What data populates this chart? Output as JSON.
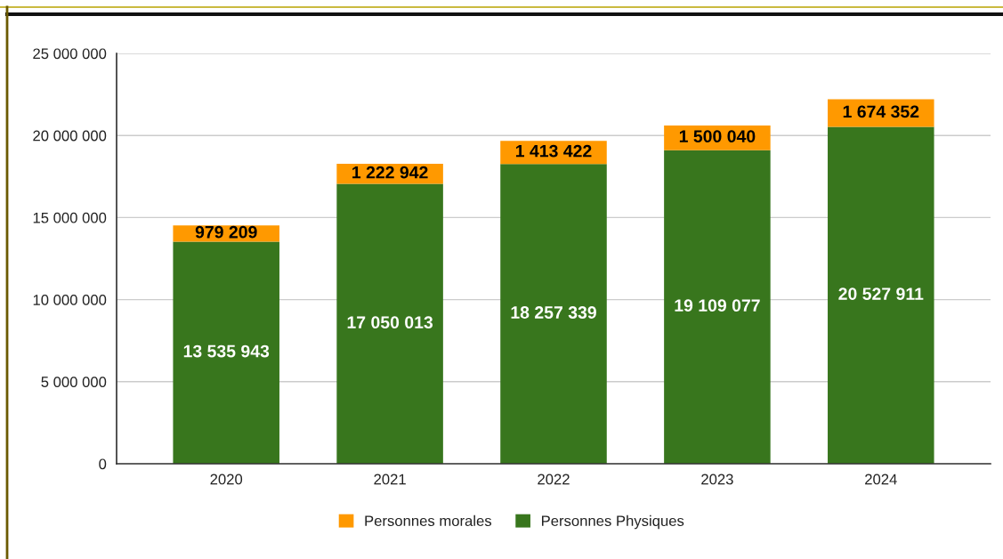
{
  "chart_data": {
    "type": "bar",
    "stacked": true,
    "categories": [
      "2020",
      "2021",
      "2022",
      "2023",
      "2024"
    ],
    "series": [
      {
        "name": "Personnes Physiques",
        "color": "#38761d",
        "values": [
          13535943,
          17050013,
          18257339,
          19109077,
          20527911
        ],
        "value_labels": [
          "13 535 943",
          "17 050 013",
          "18 257 339",
          "19 109 077",
          "20 527 911"
        ]
      },
      {
        "name": "Personnes morales",
        "color": "#ff9900",
        "values": [
          979209,
          1222942,
          1413422,
          1500040,
          1674352
        ],
        "value_labels": [
          "979 209",
          "1 222 942",
          "1 413 422",
          "1 500 040",
          "1 674 352"
        ]
      }
    ],
    "ylim": [
      0,
      25000000
    ],
    "yticks": [
      0,
      {
        "value": 5000000,
        "label": "5 000 000"
      },
      {
        "value": 10000000,
        "label": "10 000 000"
      },
      {
        "value": 15000000,
        "label": "15 000 000"
      },
      {
        "value": 20000000,
        "label": "20 000 000"
      },
      {
        "value": 25000000,
        "label": "25 000 000"
      }
    ],
    "grid": "y",
    "legend": "bottom"
  }
}
